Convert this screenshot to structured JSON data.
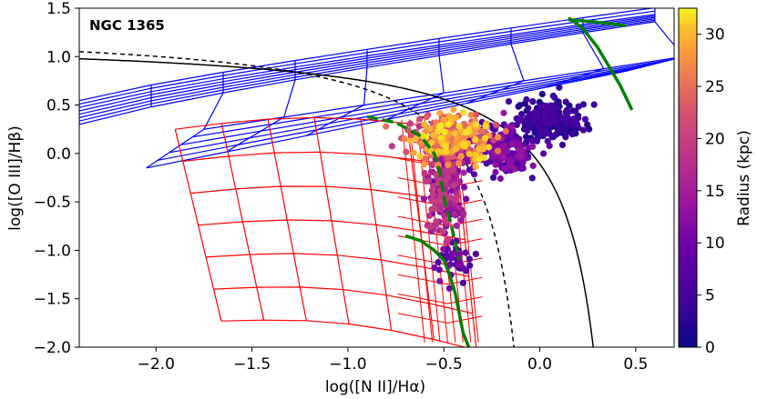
{
  "chart_data": {
    "type": "scatter",
    "title": "",
    "annotation": "NGC 1365",
    "xlabel": "log([N II]/Hα)",
    "ylabel": "log([O III]/Hβ)",
    "xlim": [
      -2.4,
      0.7
    ],
    "ylim": [
      -2.0,
      1.5
    ],
    "x_ticks": [
      -2.0,
      -1.5,
      -1.0,
      -0.5,
      0.0,
      0.5
    ],
    "x_tick_labels": [
      "−2.0",
      "−1.5",
      "−1.0",
      "−0.5",
      "0.0",
      "0.5"
    ],
    "y_ticks": [
      -2.0,
      -1.5,
      -1.0,
      -0.5,
      0.0,
      0.5,
      1.0,
      1.5
    ],
    "y_tick_labels": [
      "−2.0",
      "−1.5",
      "−1.0",
      "−0.5",
      "0.0",
      "0.5",
      "1.0",
      "1.5"
    ],
    "colorbar": {
      "label": "Radius (kpc)",
      "range": [
        0,
        32.5
      ],
      "ticks": [
        0,
        5,
        10,
        15,
        20,
        25,
        30
      ],
      "tick_labels": [
        "0",
        "5",
        "10",
        "15",
        "20",
        "25",
        "30"
      ],
      "colormap": "plasma"
    },
    "colors": {
      "kewley_line": "#000000",
      "kauffmann_line": "#000000",
      "agn_grid": "#0000ff",
      "hii_grid": "#ff0000",
      "model_tracks": "#008000"
    },
    "curves": {
      "kewley_2001": "0.61/(x-0.47)+1.19",
      "kauffmann_2003": "0.61/(x-0.05)+1.3"
    },
    "green_tracks": [
      {
        "name": "hii-track",
        "x": [
          -0.7,
          -0.62,
          -0.55,
          -0.5,
          -0.47,
          -0.44,
          -0.42,
          -0.4,
          -0.37
        ],
        "y": [
          -0.85,
          -0.9,
          -1.0,
          -1.1,
          -1.25,
          -1.45,
          -1.65,
          -1.85,
          -2.0
        ]
      },
      {
        "name": "agn-track",
        "x": [
          0.15,
          0.22,
          0.3,
          0.36,
          0.42,
          0.48
        ],
        "y": [
          1.4,
          1.3,
          1.1,
          0.9,
          0.7,
          0.45
        ]
      },
      {
        "name": "agn-top",
        "x": [
          0.15,
          0.28,
          0.45
        ],
        "y": [
          1.38,
          1.36,
          1.32
        ]
      },
      {
        "name": "mixing-track",
        "x": [
          -0.9,
          -0.75,
          -0.62,
          -0.55,
          -0.52,
          -0.5,
          -0.46,
          -0.42
        ],
        "y": [
          0.38,
          0.32,
          0.18,
          0.0,
          -0.2,
          -0.45,
          -0.75,
          -1.1
        ]
      }
    ],
    "scatter_summary": "NGC 1365 spaxels colored by galactocentric radius; ~1000 points spanning x from -0.9 to 0.3 and y from -1.6 to 0.9",
    "scatter_clusters": [
      {
        "x_center": -0.45,
        "y_center": 0.15,
        "x_spread": 0.22,
        "y_spread": 0.25,
        "radius_kpc": [
          18,
          32
        ],
        "count": 260
      },
      {
        "x_center": -0.5,
        "y_center": -0.35,
        "x_spread": 0.1,
        "y_spread": 0.45,
        "radius_kpc": [
          9,
          20
        ],
        "count": 200
      },
      {
        "x_center": -0.2,
        "y_center": 0.05,
        "x_spread": 0.18,
        "y_spread": 0.25,
        "radius_kpc": [
          3,
          14
        ],
        "count": 220
      },
      {
        "x_center": 0.05,
        "y_center": 0.35,
        "x_spread": 0.17,
        "y_spread": 0.22,
        "radius_kpc": [
          0,
          6
        ],
        "count": 200
      },
      {
        "x_center": -0.45,
        "y_center": -1.15,
        "x_spread": 0.1,
        "y_spread": 0.25,
        "radius_kpc": [
          4,
          12
        ],
        "count": 40
      }
    ]
  }
}
